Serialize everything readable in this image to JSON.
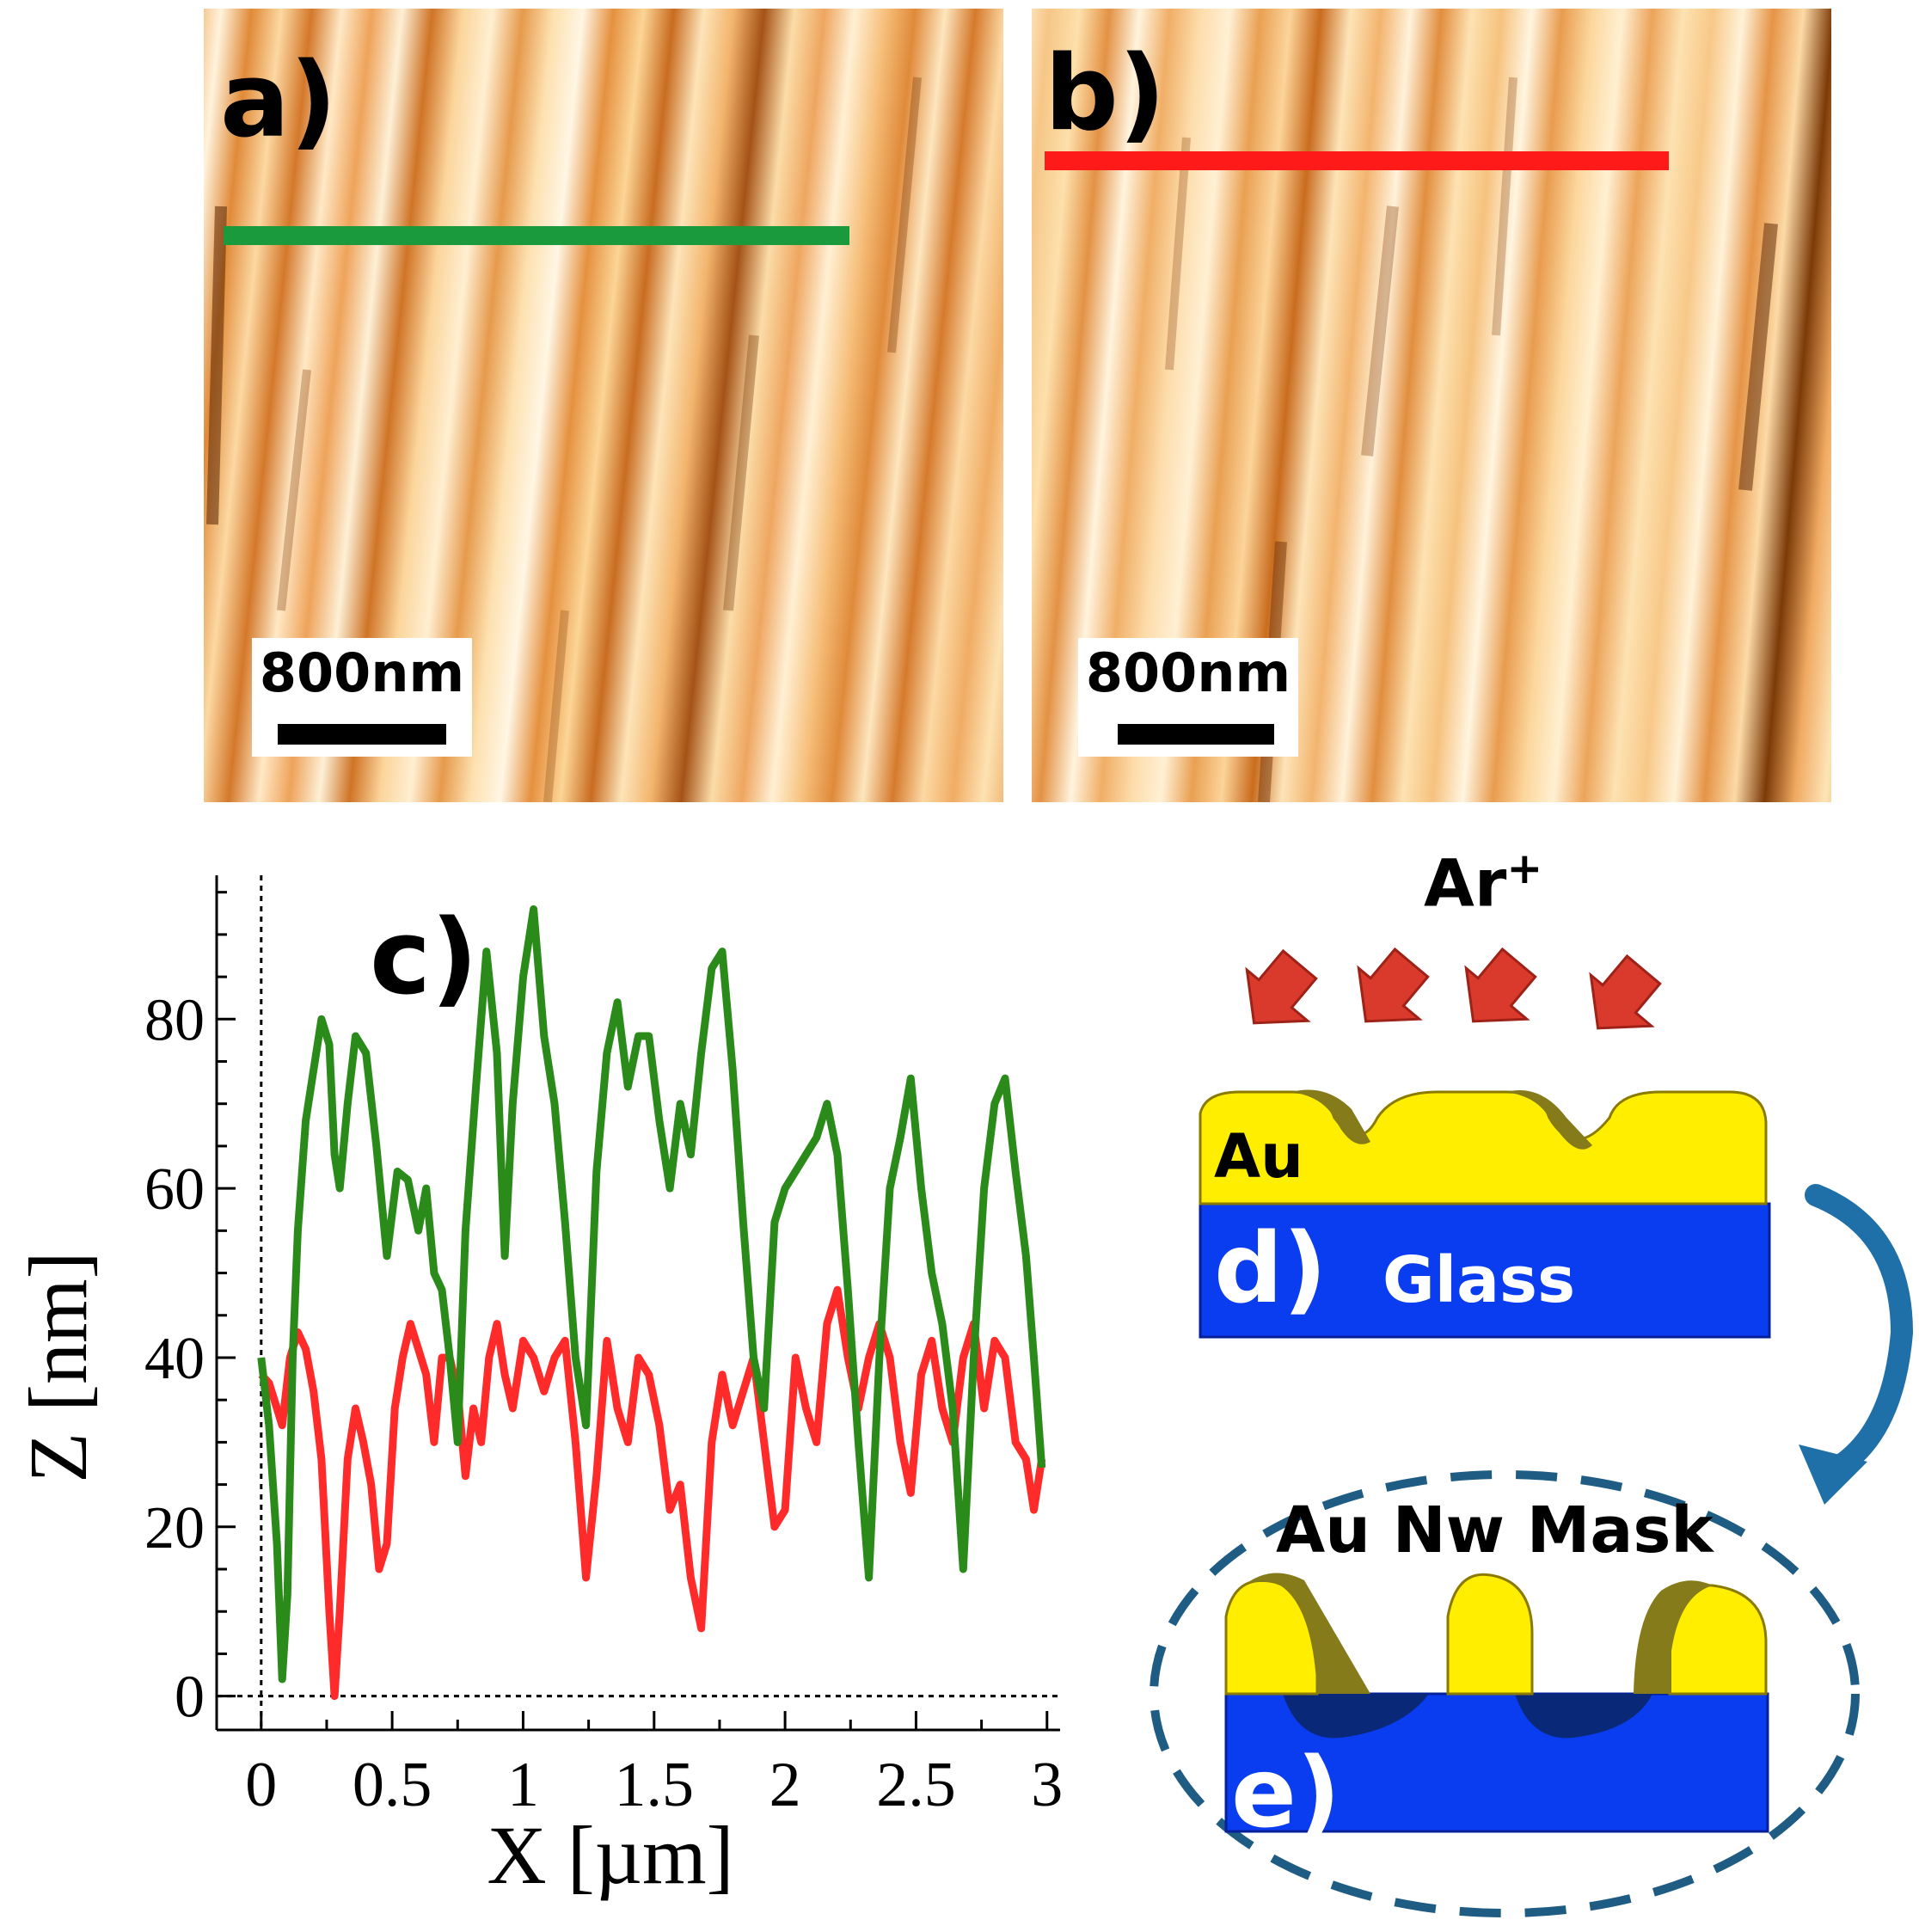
{
  "panel_a": {
    "label": "a)",
    "scalebar_text": "800nm",
    "profile_color": "#1a9a3c"
  },
  "panel_b": {
    "label": "b)",
    "scalebar_text": "800nm",
    "profile_color": "#ff1a1a"
  },
  "panel_c": {
    "label": "c)"
  },
  "diagram": {
    "ion_label": "Ar",
    "ion_charge": "+",
    "layer_au_label": "Au",
    "panel_d_label": "d)",
    "layer_glass_label": "Glass",
    "mask_label": "Au Nw Mask",
    "panel_e_label": "e)",
    "colors": {
      "gold": "#ffee00",
      "glass": "#0a3cf0",
      "arrow": "#d93a2b",
      "curve": "#1f6fa8"
    }
  },
  "chart_data": {
    "type": "line",
    "xlabel": "X [µm]",
    "ylabel": "Z [nm]",
    "xlim": [
      -0.17,
      3.05
    ],
    "ylim": [
      -4,
      97
    ],
    "xticks": [
      0,
      0.5,
      1,
      1.5,
      2,
      2.5,
      3
    ],
    "xtick_labels": [
      "0",
      "0.5",
      "1",
      "1.5",
      "2",
      "2.5",
      "3"
    ],
    "yticks": [
      0,
      20,
      40,
      60,
      80
    ],
    "ytick_labels": [
      "0",
      "20",
      "40",
      "60",
      "80"
    ],
    "reference_lines": {
      "x": 0,
      "y": 0
    },
    "series": [
      {
        "color": "#2a8a1a",
        "x": [
          0.0,
          0.03,
          0.06,
          0.08,
          0.1,
          0.12,
          0.14,
          0.17,
          0.2,
          0.23,
          0.26,
          0.28,
          0.3,
          0.33,
          0.36,
          0.4,
          0.44,
          0.48,
          0.52,
          0.56,
          0.6,
          0.63,
          0.66,
          0.69,
          0.72,
          0.75,
          0.78,
          0.82,
          0.86,
          0.9,
          0.93,
          0.96,
          1.0,
          1.04,
          1.08,
          1.12,
          1.16,
          1.2,
          1.24,
          1.28,
          1.32,
          1.36,
          1.4,
          1.44,
          1.48,
          1.52,
          1.56,
          1.6,
          1.64,
          1.68,
          1.72,
          1.76,
          1.8,
          1.84,
          1.88,
          1.92,
          1.96,
          2.0,
          2.04,
          2.08,
          2.12,
          2.16,
          2.2,
          2.24,
          2.28,
          2.32,
          2.36,
          2.4,
          2.44,
          2.48,
          2.52,
          2.56,
          2.6,
          2.64,
          2.68,
          2.72,
          2.76,
          2.8,
          2.84,
          2.88,
          2.92,
          2.95,
          2.98
        ],
        "y": [
          40,
          32,
          18,
          2,
          12,
          40,
          55,
          68,
          74,
          80,
          77,
          64,
          60,
          70,
          78,
          76,
          65,
          52,
          62,
          61,
          55,
          60,
          50,
          48,
          40,
          30,
          55,
          72,
          88,
          76,
          52,
          70,
          85,
          93,
          78,
          70,
          56,
          40,
          32,
          62,
          76,
          82,
          72,
          78,
          78,
          68,
          60,
          70,
          64,
          76,
          86,
          88,
          74,
          56,
          40,
          34,
          56,
          60,
          62,
          64,
          66,
          70,
          64,
          48,
          30,
          14,
          40,
          60,
          66,
          73,
          60,
          50,
          44,
          34,
          15,
          40,
          60,
          70,
          73,
          62,
          52,
          40,
          27
        ]
      },
      {
        "color": "#ff2a2a",
        "x": [
          0.0,
          0.03,
          0.06,
          0.08,
          0.11,
          0.14,
          0.17,
          0.2,
          0.23,
          0.26,
          0.28,
          0.3,
          0.33,
          0.36,
          0.39,
          0.42,
          0.45,
          0.48,
          0.51,
          0.54,
          0.57,
          0.6,
          0.63,
          0.66,
          0.69,
          0.72,
          0.75,
          0.78,
          0.81,
          0.84,
          0.87,
          0.9,
          0.93,
          0.96,
          1.0,
          1.04,
          1.08,
          1.12,
          1.16,
          1.2,
          1.24,
          1.28,
          1.32,
          1.36,
          1.4,
          1.44,
          1.48,
          1.52,
          1.56,
          1.6,
          1.64,
          1.68,
          1.72,
          1.76,
          1.8,
          1.84,
          1.88,
          1.92,
          1.96,
          2.0,
          2.04,
          2.08,
          2.12,
          2.16,
          2.2,
          2.24,
          2.28,
          2.32,
          2.36,
          2.4,
          2.44,
          2.48,
          2.52,
          2.56,
          2.6,
          2.64,
          2.68,
          2.72,
          2.76,
          2.8,
          2.84,
          2.88,
          2.92,
          2.95,
          2.98
        ],
        "y": [
          38,
          37,
          34,
          32,
          40,
          43,
          41,
          36,
          28,
          10,
          0,
          10,
          28,
          34,
          30,
          25,
          15,
          18,
          34,
          40,
          44,
          41,
          38,
          30,
          40,
          40,
          36,
          26,
          34,
          30,
          40,
          44,
          38,
          34,
          42,
          40,
          36,
          40,
          42,
          30,
          14,
          26,
          42,
          34,
          30,
          40,
          38,
          32,
          22,
          25,
          14,
          8,
          30,
          38,
          32,
          36,
          40,
          30,
          20,
          22,
          40,
          34,
          30,
          44,
          48,
          40,
          34,
          40,
          44,
          40,
          30,
          24,
          38,
          42,
          34,
          30,
          40,
          44,
          34,
          42,
          40,
          30,
          28,
          22,
          28
        ]
      }
    ]
  }
}
